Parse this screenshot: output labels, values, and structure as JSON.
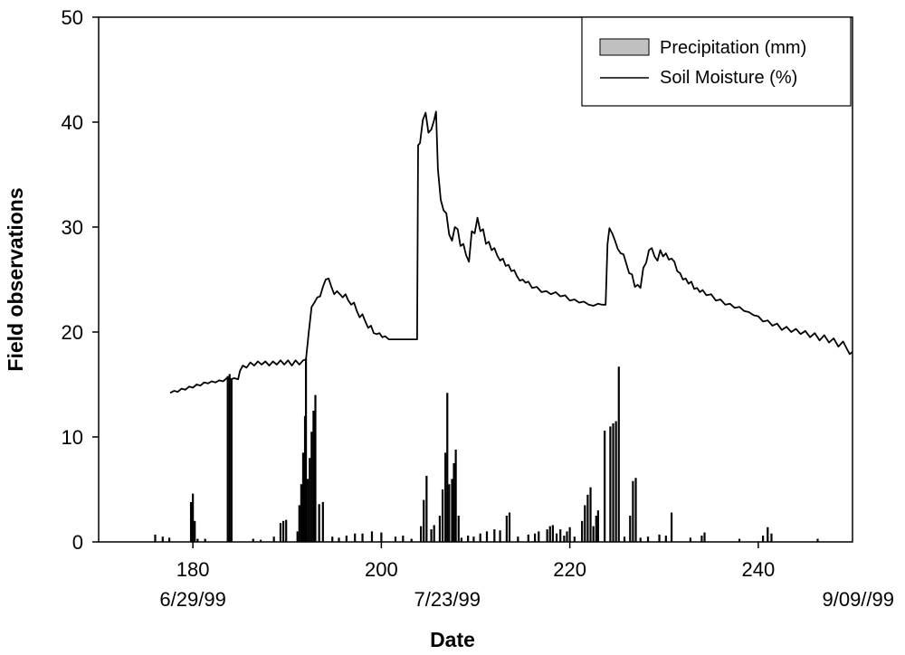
{
  "chart_data": {
    "type": "bar+line",
    "title": "",
    "xlabel": "Date",
    "ylabel": "Field observations",
    "xlim": [
      170,
      250
    ],
    "ylim": [
      0,
      50
    ],
    "x_ticks": [
      180,
      200,
      220,
      240
    ],
    "y_ticks": [
      0,
      10,
      20,
      30,
      40,
      50
    ],
    "date_labels": [
      {
        "x": 180,
        "label": "6/29/99"
      },
      {
        "x": 207,
        "label": "7/23/99"
      },
      {
        "x": 250,
        "label": "9/09//99"
      }
    ],
    "legend": {
      "placement": "top-right",
      "entries": [
        {
          "label": "Precipitation (mm)",
          "kind": "bar"
        },
        {
          "label": "Soil Moisture (%)",
          "kind": "line"
        }
      ]
    },
    "series": [
      {
        "name": "Precipitation (mm)",
        "kind": "bar",
        "fill": "#000000",
        "points": [
          [
            176.0,
            0.7
          ],
          [
            176.8,
            0.5
          ],
          [
            177.5,
            0.4
          ],
          [
            179.8,
            3.8
          ],
          [
            180.0,
            4.6
          ],
          [
            180.2,
            2.0
          ],
          [
            180.5,
            0.3
          ],
          [
            181.3,
            0.3
          ],
          [
            183.7,
            15.8
          ],
          [
            183.9,
            16.0
          ],
          [
            184.1,
            15.5
          ],
          [
            186.4,
            0.3
          ],
          [
            187.2,
            0.2
          ],
          [
            188.6,
            0.5
          ],
          [
            189.3,
            1.8
          ],
          [
            189.6,
            2.0
          ],
          [
            189.9,
            2.1
          ],
          [
            191.1,
            1.0
          ],
          [
            191.3,
            3.5
          ],
          [
            191.5,
            5.5
          ],
          [
            191.7,
            8.5
          ],
          [
            191.9,
            12.0
          ],
          [
            192.0,
            17.5
          ],
          [
            192.2,
            6.0
          ],
          [
            192.4,
            8.0
          ],
          [
            192.6,
            10.5
          ],
          [
            192.8,
            12.5
          ],
          [
            193.0,
            14.0
          ],
          [
            193.4,
            3.6
          ],
          [
            193.8,
            3.8
          ],
          [
            194.8,
            0.5
          ],
          [
            195.5,
            0.4
          ],
          [
            196.3,
            0.6
          ],
          [
            197.2,
            0.8
          ],
          [
            198.0,
            0.8
          ],
          [
            199.0,
            1.0
          ],
          [
            200.0,
            0.9
          ],
          [
            201.5,
            0.5
          ],
          [
            202.3,
            0.6
          ],
          [
            203.2,
            0.3
          ],
          [
            204.2,
            1.5
          ],
          [
            204.5,
            4.0
          ],
          [
            204.8,
            6.3
          ],
          [
            205.3,
            1.2
          ],
          [
            205.6,
            1.6
          ],
          [
            206.2,
            2.5
          ],
          [
            206.5,
            5.0
          ],
          [
            206.8,
            8.5
          ],
          [
            207.0,
            14.2
          ],
          [
            207.2,
            5.5
          ],
          [
            207.5,
            6.0
          ],
          [
            207.7,
            7.5
          ],
          [
            207.9,
            8.8
          ],
          [
            208.2,
            2.5
          ],
          [
            208.5,
            0.4
          ],
          [
            209.2,
            0.6
          ],
          [
            209.8,
            0.5
          ],
          [
            210.5,
            0.8
          ],
          [
            211.2,
            1.0
          ],
          [
            212.0,
            1.2
          ],
          [
            212.6,
            1.1
          ],
          [
            213.3,
            2.5
          ],
          [
            213.6,
            2.8
          ],
          [
            214.5,
            0.5
          ],
          [
            215.6,
            0.7
          ],
          [
            216.3,
            0.8
          ],
          [
            216.7,
            1.0
          ],
          [
            217.6,
            1.2
          ],
          [
            217.9,
            1.5
          ],
          [
            218.2,
            1.6
          ],
          [
            218.6,
            0.8
          ],
          [
            219.0,
            1.2
          ],
          [
            219.4,
            0.6
          ],
          [
            219.7,
            1.0
          ],
          [
            220.0,
            1.4
          ],
          [
            220.5,
            0.5
          ],
          [
            221.3,
            2.0
          ],
          [
            221.6,
            3.5
          ],
          [
            221.9,
            4.5
          ],
          [
            222.2,
            5.2
          ],
          [
            222.5,
            1.5
          ],
          [
            222.8,
            2.5
          ],
          [
            223.0,
            3.0
          ],
          [
            223.7,
            10.6
          ],
          [
            224.3,
            11.0
          ],
          [
            224.6,
            11.3
          ],
          [
            224.9,
            11.5
          ],
          [
            225.2,
            16.7
          ],
          [
            225.8,
            0.5
          ],
          [
            226.4,
            2.5
          ],
          [
            226.7,
            5.8
          ],
          [
            227.0,
            6.1
          ],
          [
            227.5,
            0.4
          ],
          [
            228.3,
            0.5
          ],
          [
            229.5,
            0.7
          ],
          [
            230.2,
            0.6
          ],
          [
            230.8,
            2.8
          ],
          [
            232.8,
            0.4
          ],
          [
            234.0,
            0.6
          ],
          [
            234.3,
            0.9
          ],
          [
            238.0,
            0.3
          ],
          [
            240.5,
            0.6
          ],
          [
            241.0,
            1.4
          ],
          [
            241.4,
            0.8
          ],
          [
            246.3,
            0.3
          ]
        ]
      },
      {
        "name": "Soil Moisture (%)",
        "kind": "line",
        "stroke": "#000000",
        "points": [
          [
            177.6,
            14.2
          ],
          [
            178.0,
            14.4
          ],
          [
            178.4,
            14.3
          ],
          [
            178.8,
            14.6
          ],
          [
            179.2,
            14.5
          ],
          [
            179.6,
            14.8
          ],
          [
            180.0,
            14.7
          ],
          [
            180.4,
            15.0
          ],
          [
            180.8,
            14.9
          ],
          [
            181.2,
            15.2
          ],
          [
            181.6,
            15.1
          ],
          [
            182.0,
            15.3
          ],
          [
            182.4,
            15.2
          ],
          [
            182.8,
            15.4
          ],
          [
            183.2,
            15.3
          ],
          [
            183.6,
            15.6
          ],
          [
            184.0,
            15.5
          ],
          [
            184.4,
            15.6
          ],
          [
            184.8,
            15.5
          ],
          [
            185.0,
            16.3
          ],
          [
            185.3,
            16.8
          ],
          [
            185.7,
            16.6
          ],
          [
            186.1,
            17.1
          ],
          [
            186.5,
            16.8
          ],
          [
            186.9,
            17.2
          ],
          [
            187.3,
            16.9
          ],
          [
            187.7,
            17.2
          ],
          [
            188.1,
            16.8
          ],
          [
            188.5,
            17.2
          ],
          [
            188.9,
            16.9
          ],
          [
            189.3,
            17.3
          ],
          [
            189.7,
            16.9
          ],
          [
            190.1,
            17.3
          ],
          [
            190.5,
            16.8
          ],
          [
            190.9,
            17.3
          ],
          [
            191.3,
            16.9
          ],
          [
            191.7,
            17.3
          ],
          [
            192.0,
            17.4
          ],
          [
            192.3,
            20.0
          ],
          [
            192.6,
            22.4
          ],
          [
            192.9,
            22.8
          ],
          [
            193.2,
            23.3
          ],
          [
            193.5,
            23.4
          ],
          [
            193.8,
            24.3
          ],
          [
            194.1,
            25.0
          ],
          [
            194.4,
            25.1
          ],
          [
            194.7,
            24.3
          ],
          [
            195.0,
            23.6
          ],
          [
            195.3,
            23.9
          ],
          [
            195.6,
            23.6
          ],
          [
            195.9,
            23.3
          ],
          [
            196.2,
            23.6
          ],
          [
            196.5,
            23.0
          ],
          [
            196.8,
            22.6
          ],
          [
            197.1,
            22.8
          ],
          [
            197.4,
            22.0
          ],
          [
            197.7,
            21.4
          ],
          [
            198.0,
            21.7
          ],
          [
            198.3,
            21.0
          ],
          [
            198.6,
            20.4
          ],
          [
            198.9,
            20.6
          ],
          [
            199.2,
            19.9
          ],
          [
            199.5,
            19.8
          ],
          [
            199.8,
            19.9
          ],
          [
            200.1,
            19.5
          ],
          [
            200.4,
            19.6
          ],
          [
            200.8,
            19.3
          ],
          [
            201.5,
            19.3
          ],
          [
            202.5,
            19.3
          ],
          [
            203.5,
            19.3
          ],
          [
            203.8,
            19.3
          ],
          [
            203.9,
            37.8
          ],
          [
            204.1,
            38.0
          ],
          [
            204.4,
            40.2
          ],
          [
            204.7,
            40.9
          ],
          [
            205.0,
            39.0
          ],
          [
            205.3,
            39.3
          ],
          [
            205.6,
            40.2
          ],
          [
            205.8,
            41.0
          ],
          [
            206.0,
            35.5
          ],
          [
            206.3,
            32.6
          ],
          [
            206.6,
            31.6
          ],
          [
            206.9,
            31.3
          ],
          [
            207.2,
            29.3
          ],
          [
            207.5,
            28.7
          ],
          [
            207.8,
            30.0
          ],
          [
            208.1,
            29.8
          ],
          [
            208.4,
            28.2
          ],
          [
            208.7,
            28.4
          ],
          [
            209.0,
            27.3
          ],
          [
            209.3,
            26.7
          ],
          [
            209.6,
            29.6
          ],
          [
            209.9,
            29.4
          ],
          [
            210.2,
            30.9
          ],
          [
            210.5,
            29.6
          ],
          [
            210.8,
            29.8
          ],
          [
            211.1,
            28.4
          ],
          [
            211.4,
            28.6
          ],
          [
            211.7,
            27.8
          ],
          [
            212.0,
            28.0
          ],
          [
            212.3,
            27.3
          ],
          [
            212.6,
            26.8
          ],
          [
            212.9,
            27.0
          ],
          [
            213.2,
            26.3
          ],
          [
            213.5,
            26.4
          ],
          [
            213.8,
            25.8
          ],
          [
            214.1,
            25.9
          ],
          [
            214.4,
            25.3
          ],
          [
            214.7,
            24.9
          ],
          [
            215.0,
            25.0
          ],
          [
            215.3,
            24.7
          ],
          [
            215.6,
            24.8
          ],
          [
            216.0,
            24.2
          ],
          [
            216.5,
            24.3
          ],
          [
            217.0,
            23.8
          ],
          [
            217.5,
            23.9
          ],
          [
            218.0,
            23.6
          ],
          [
            218.5,
            23.8
          ],
          [
            219.0,
            23.4
          ],
          [
            219.5,
            23.5
          ],
          [
            220.0,
            23.0
          ],
          [
            220.5,
            23.1
          ],
          [
            221.0,
            22.8
          ],
          [
            221.5,
            22.9
          ],
          [
            222.0,
            22.6
          ],
          [
            222.5,
            22.5
          ],
          [
            223.0,
            22.7
          ],
          [
            223.4,
            22.6
          ],
          [
            223.8,
            22.6
          ],
          [
            224.0,
            28.4
          ],
          [
            224.2,
            29.9
          ],
          [
            224.5,
            29.4
          ],
          [
            224.8,
            28.7
          ],
          [
            225.1,
            27.9
          ],
          [
            225.4,
            27.5
          ],
          [
            225.7,
            27.4
          ],
          [
            226.0,
            26.5
          ],
          [
            226.3,
            25.6
          ],
          [
            226.6,
            25.5
          ],
          [
            226.9,
            24.3
          ],
          [
            227.2,
            24.5
          ],
          [
            227.5,
            24.2
          ],
          [
            227.8,
            26.1
          ],
          [
            228.1,
            26.6
          ],
          [
            228.4,
            27.8
          ],
          [
            228.7,
            28.0
          ],
          [
            229.0,
            27.2
          ],
          [
            229.3,
            26.8
          ],
          [
            229.6,
            27.8
          ],
          [
            229.9,
            27.2
          ],
          [
            230.2,
            27.5
          ],
          [
            230.5,
            26.9
          ],
          [
            230.8,
            27.0
          ],
          [
            231.1,
            26.7
          ],
          [
            231.4,
            25.8
          ],
          [
            231.7,
            25.6
          ],
          [
            232.0,
            25.0
          ],
          [
            232.3,
            25.1
          ],
          [
            232.6,
            24.6
          ],
          [
            232.9,
            24.8
          ],
          [
            233.2,
            24.1
          ],
          [
            233.5,
            24.2
          ],
          [
            233.8,
            23.8
          ],
          [
            234.1,
            24.0
          ],
          [
            234.5,
            23.5
          ],
          [
            235.0,
            23.6
          ],
          [
            235.5,
            23.0
          ],
          [
            236.0,
            23.1
          ],
          [
            236.5,
            22.6
          ],
          [
            237.0,
            22.7
          ],
          [
            237.5,
            22.3
          ],
          [
            238.0,
            22.4
          ],
          [
            238.5,
            22.0
          ],
          [
            239.0,
            21.9
          ],
          [
            239.5,
            21.6
          ],
          [
            240.0,
            21.5
          ],
          [
            240.5,
            21.0
          ],
          [
            241.0,
            21.1
          ],
          [
            241.5,
            20.6
          ],
          [
            242.0,
            20.8
          ],
          [
            242.5,
            20.2
          ],
          [
            243.0,
            20.5
          ],
          [
            243.5,
            20.0
          ],
          [
            244.0,
            20.3
          ],
          [
            244.5,
            19.8
          ],
          [
            245.0,
            20.1
          ],
          [
            245.5,
            19.5
          ],
          [
            246.0,
            19.9
          ],
          [
            246.5,
            19.2
          ],
          [
            247.0,
            19.7
          ],
          [
            247.5,
            19.0
          ],
          [
            248.0,
            19.4
          ],
          [
            248.5,
            18.6
          ],
          [
            249.0,
            19.1
          ],
          [
            249.4,
            18.4
          ],
          [
            249.7,
            17.9
          ],
          [
            250.0,
            18.1
          ]
        ]
      }
    ]
  }
}
